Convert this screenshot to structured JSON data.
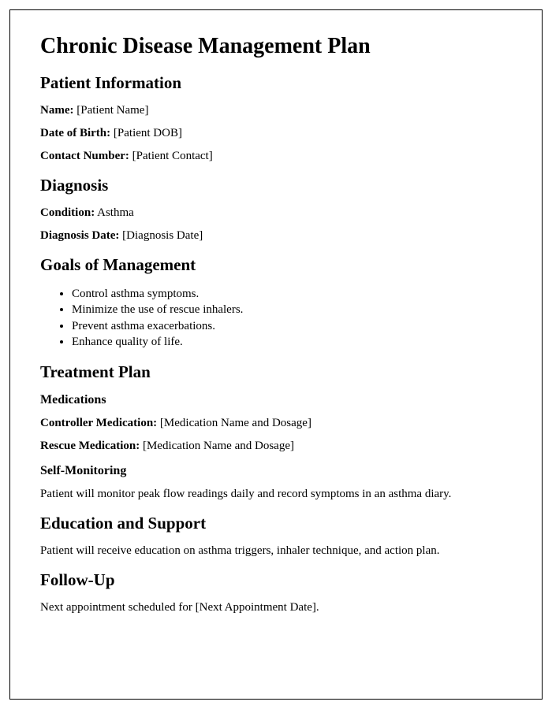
{
  "title": "Chronic Disease Management Plan",
  "sections": {
    "patient_info": {
      "heading": "Patient Information",
      "fields": {
        "name_label": "Name:",
        "name_value": " [Patient Name]",
        "dob_label": "Date of Birth:",
        "dob_value": " [Patient DOB]",
        "contact_label": "Contact Number:",
        "contact_value": " [Patient Contact]"
      }
    },
    "diagnosis": {
      "heading": "Diagnosis",
      "fields": {
        "condition_label": "Condition:",
        "condition_value": " Asthma",
        "date_label": "Diagnosis Date:",
        "date_value": " [Diagnosis Date]"
      }
    },
    "goals": {
      "heading": "Goals of Management",
      "items": [
        "Control asthma symptoms.",
        "Minimize the use of rescue inhalers.",
        "Prevent asthma exacerbations.",
        "Enhance quality of life."
      ]
    },
    "treatment": {
      "heading": "Treatment Plan",
      "medications": {
        "heading": "Medications",
        "controller_label": "Controller Medication:",
        "controller_value": " [Medication Name and Dosage]",
        "rescue_label": "Rescue Medication:",
        "rescue_value": " [Medication Name and Dosage]"
      },
      "self_monitoring": {
        "heading": "Self-Monitoring",
        "text": "Patient will monitor peak flow readings daily and record symptoms in an asthma diary."
      }
    },
    "education": {
      "heading": "Education and Support",
      "text": "Patient will receive education on asthma triggers, inhaler technique, and action plan."
    },
    "followup": {
      "heading": "Follow-Up",
      "text": "Next appointment scheduled for [Next Appointment Date]."
    }
  },
  "style": {
    "font_family": "Times New Roman",
    "h1_fontsize": 28,
    "h2_fontsize": 21,
    "h3_fontsize": 16,
    "body_fontsize": 15,
    "text_color": "#000000",
    "background_color": "#ffffff",
    "border_color": "#000000"
  }
}
